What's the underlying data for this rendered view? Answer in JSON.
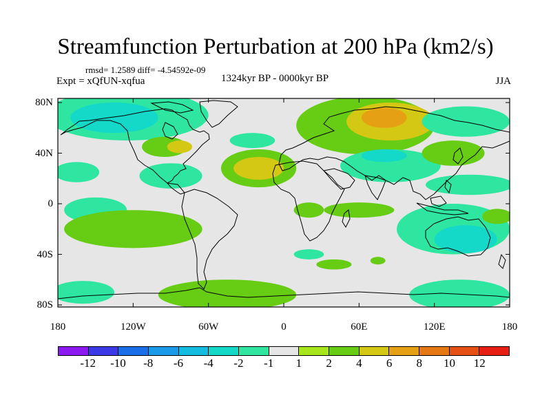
{
  "title": "Streamfunction Perturbation at 200 hPa (km2/s)",
  "stats_line": "rmsd= 1.2589 diff= -4.54592e-09",
  "expt_line": "Expt = xQfUN-xqfua",
  "period_line": "1324kyr BP - 0000kyr BP",
  "season": "JJA",
  "lat_ticks": [
    {
      "label": "80N",
      "lat": 80
    },
    {
      "label": "40N",
      "lat": 40
    },
    {
      "label": "0",
      "lat": 0
    },
    {
      "label": "40S",
      "lat": -40
    },
    {
      "label": "80S",
      "lat": -80
    }
  ],
  "lon_ticks": [
    {
      "label": "180",
      "lon": -180
    },
    {
      "label": "120W",
      "lon": -120
    },
    {
      "label": "60W",
      "lon": -60
    },
    {
      "label": "0",
      "lon": 0
    },
    {
      "label": "60E",
      "lon": 60
    },
    {
      "label": "120E",
      "lon": 120
    },
    {
      "label": "180",
      "lon": 180
    }
  ],
  "colorbar": {
    "colors": [
      "#8c1af0",
      "#3b38e6",
      "#1a6ee8",
      "#1a9ae8",
      "#14bde0",
      "#14d8c8",
      "#2ee6a0",
      "#e6e6e6",
      "#a6e61a",
      "#66cc14",
      "#d4c814",
      "#e6a014",
      "#e67814",
      "#e65014",
      "#e61e14"
    ],
    "labels": [
      "-12",
      "-10",
      "-8",
      "-6",
      "-4",
      "-2",
      "-1",
      "1",
      "2",
      "4",
      "6",
      "8",
      "10",
      "12"
    ]
  },
  "map_anomalies": [
    {
      "lon": -125,
      "lat": 70,
      "rlon": 65,
      "rlat": 20,
      "value": -2
    },
    {
      "lon": -135,
      "lat": 68,
      "rlon": 35,
      "rlat": 12,
      "value": -4
    },
    {
      "lon": -165,
      "lat": 25,
      "rlon": 18,
      "rlat": 8,
      "value": -2
    },
    {
      "lon": -95,
      "lat": 45,
      "rlon": 18,
      "rlat": 8,
      "value": 2
    },
    {
      "lon": -83,
      "lat": 45,
      "rlon": 10,
      "rlat": 5,
      "value": 4
    },
    {
      "lon": -90,
      "lat": 22,
      "rlon": 25,
      "rlat": 10,
      "value": -2
    },
    {
      "lon": -25,
      "lat": 50,
      "rlon": 18,
      "rlat": 6,
      "value": -2
    },
    {
      "lon": -20,
      "lat": 28,
      "rlon": 30,
      "rlat": 15,
      "value": 2
    },
    {
      "lon": -20,
      "lat": 28,
      "rlon": 20,
      "rlat": 9,
      "value": 4
    },
    {
      "lon": 65,
      "lat": 62,
      "rlon": 55,
      "rlat": 23,
      "value": 2
    },
    {
      "lon": 85,
      "lat": 65,
      "rlon": 35,
      "rlat": 15,
      "value": 4
    },
    {
      "lon": 80,
      "lat": 68,
      "rlon": 18,
      "rlat": 8,
      "value": 6
    },
    {
      "lon": 85,
      "lat": 30,
      "rlon": 40,
      "rlat": 13,
      "value": -2
    },
    {
      "lon": 80,
      "lat": 38,
      "rlon": 18,
      "rlat": 5,
      "value": -4
    },
    {
      "lon": 145,
      "lat": 65,
      "rlon": 35,
      "rlat": 12,
      "value": -2
    },
    {
      "lon": 135,
      "lat": 40,
      "rlon": 25,
      "rlat": 10,
      "value": 2
    },
    {
      "lon": 148,
      "lat": 15,
      "rlon": 35,
      "rlat": 8,
      "value": -2
    },
    {
      "lon": -150,
      "lat": -5,
      "rlon": 25,
      "rlat": 10,
      "value": -2
    },
    {
      "lon": -120,
      "lat": -20,
      "rlon": 55,
      "rlat": 15,
      "value": 2
    },
    {
      "lon": 60,
      "lat": -5,
      "rlon": 28,
      "rlat": 6,
      "value": 2
    },
    {
      "lon": 20,
      "lat": -5,
      "rlon": 12,
      "rlat": 6,
      "value": 2
    },
    {
      "lon": 135,
      "lat": -20,
      "rlon": 45,
      "rlat": 20,
      "value": -2
    },
    {
      "lon": 145,
      "lat": -28,
      "rlon": 25,
      "rlat": 11,
      "value": -4
    },
    {
      "lon": 170,
      "lat": -10,
      "rlon": 12,
      "rlat": 6,
      "value": 2
    },
    {
      "lon": -160,
      "lat": -70,
      "rlon": 25,
      "rlat": 9,
      "value": -2
    },
    {
      "lon": -45,
      "lat": -72,
      "rlon": 55,
      "rlat": 12,
      "value": 2
    },
    {
      "lon": 140,
      "lat": -72,
      "rlon": 40,
      "rlat": 12,
      "value": -2
    },
    {
      "lon": 20,
      "lat": -40,
      "rlon": 12,
      "rlat": 4,
      "value": -2
    },
    {
      "lon": 40,
      "lat": -48,
      "rlon": 14,
      "rlat": 4,
      "value": 2
    },
    {
      "lon": 75,
      "lat": -45,
      "rlon": 6,
      "rlat": 3,
      "value": 2
    }
  ]
}
